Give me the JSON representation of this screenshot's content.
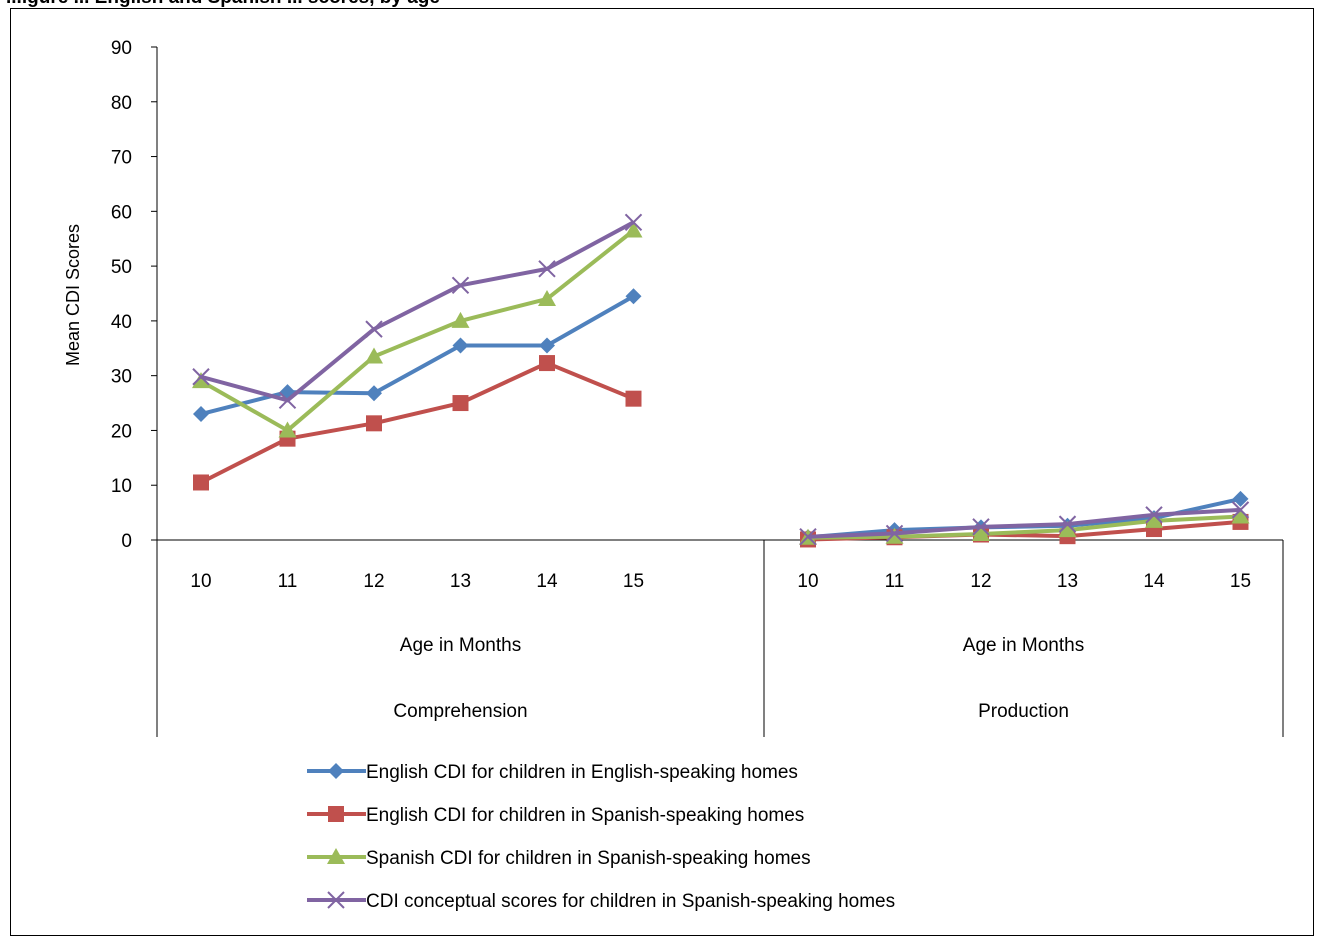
{
  "caption": "...igure ... English and Spanish ... scores, by age",
  "chart_data": {
    "type": "line",
    "title": "",
    "ylabel": "Mean CDI Scores",
    "ylim": [
      0,
      90
    ],
    "yticks": [
      "0",
      "10",
      "20",
      "30",
      "40",
      "50",
      "60",
      "70",
      "80",
      "90"
    ],
    "grid": false,
    "legend_position": "bottom",
    "groups": [
      {
        "name": "Comprehension",
        "axis_label": "Age in Months",
        "categories": [
          "10",
          "11",
          "12",
          "13",
          "14",
          "15"
        ],
        "series": [
          {
            "name": "English CDI for children in English-speaking homes",
            "marker": "diamond",
            "color": "#4F81BD",
            "values": [
              23,
              27,
              26.8,
              35.5,
              35.5,
              44.5
            ]
          },
          {
            "name": "English CDI for children in Spanish-speaking homes",
            "marker": "square",
            "color": "#C0504D",
            "values": [
              10.5,
              18.5,
              21.3,
              25,
              32.3,
              25.8
            ]
          },
          {
            "name": "Spanish CDI for children in Spanish-speaking homes",
            "marker": "triangle",
            "color": "#9BBB59",
            "values": [
              29,
              20,
              33.5,
              40,
              44,
              56.5
            ]
          },
          {
            "name": "CDI conceptual scores for children in Spanish-speaking homes",
            "marker": "x",
            "color": "#8064A2",
            "values": [
              29.8,
              25.5,
              38.5,
              46.5,
              49.5,
              58
            ]
          }
        ]
      },
      {
        "name": "Production",
        "axis_label": "Age in Months",
        "categories": [
          "10",
          "11",
          "12",
          "13",
          "14",
          "15"
        ],
        "series": [
          {
            "name": "English CDI for children in English-speaking homes",
            "marker": "diamond",
            "color": "#4F81BD",
            "values": [
              0.5,
              1.8,
              2.3,
              2.6,
              4,
              7.5
            ]
          },
          {
            "name": "English CDI for children in Spanish-speaking homes",
            "marker": "square",
            "color": "#C0504D",
            "values": [
              0.1,
              0.5,
              1,
              0.7,
              2,
              3.3
            ]
          },
          {
            "name": "Spanish CDI for children in Spanish-speaking homes",
            "marker": "triangle",
            "color": "#9BBB59",
            "values": [
              0.4,
              0.6,
              1.1,
              1.8,
              3.5,
              4.3
            ]
          },
          {
            "name": "CDI conceptual scores for children in Spanish-speaking homes",
            "marker": "x",
            "color": "#8064A2",
            "values": [
              0.6,
              1.2,
              2.4,
              2.9,
              4.6,
              5.5
            ]
          }
        ]
      }
    ],
    "legend": [
      {
        "label": "English CDI for children in English-speaking homes",
        "marker": "diamond",
        "color": "#4F81BD"
      },
      {
        "label": "English CDI for children in Spanish-speaking homes",
        "marker": "square",
        "color": "#C0504D"
      },
      {
        "label": "Spanish CDI for children in Spanish-speaking homes",
        "marker": "triangle",
        "color": "#9BBB59"
      },
      {
        "label": "CDI conceptual scores for children in Spanish-speaking homes",
        "marker": "x",
        "color": "#8064A2"
      }
    ]
  }
}
